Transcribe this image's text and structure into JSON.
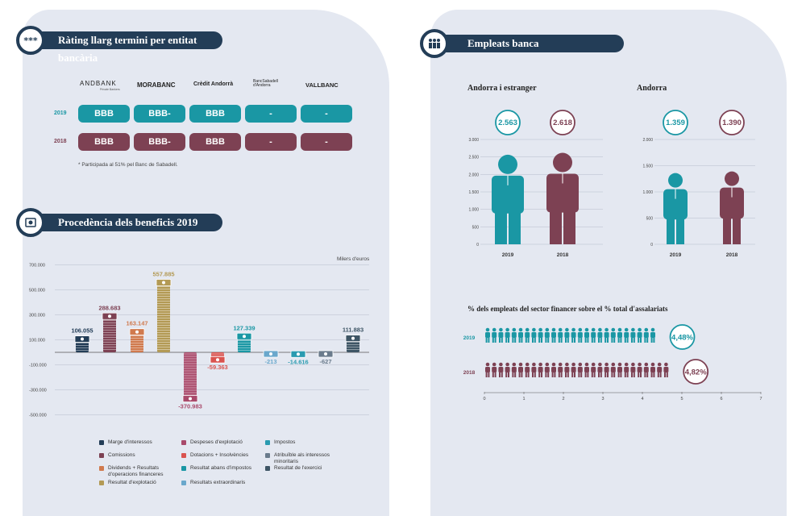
{
  "colors": {
    "navy": "#233d57",
    "teal": "#1a97a4",
    "maroon": "#7d4153",
    "panel": "#e4e8f1"
  },
  "rating": {
    "title": "Ràting llarg termini per entitat bancària",
    "icon": "stars-icon",
    "icon_glyph": "***",
    "logos": [
      "ANDBANK",
      "MORABANC",
      "Crèdit Andorrà",
      "BancSabadell d'Andorra",
      "VALLBANC"
    ],
    "logo_sub": "Private Bankers",
    "rows": [
      {
        "year": "2019",
        "values": [
          "BBB",
          "BBB-",
          "BBB",
          "-",
          "-"
        ]
      },
      {
        "year": "2018",
        "values": [
          "BBB",
          "BBB-",
          "BBB",
          "-",
          "-"
        ]
      }
    ],
    "note": "* Participada al 51% pel Banc de Sabadell."
  },
  "employees": {
    "title": "Empleats banca",
    "icon": "people-icon",
    "charts": [
      {
        "subtitle": "Andorra i estranger",
        "ticks": [
          "0",
          "500",
          "1.000",
          "1.500",
          "2.000",
          "2.500",
          "3.000"
        ],
        "bars": [
          {
            "year": "2019",
            "label": "2.563",
            "value": 2563
          },
          {
            "year": "2018",
            "label": "2.618",
            "value": 2618
          }
        ],
        "ymax": 3000
      },
      {
        "subtitle": "Andorra",
        "ticks": [
          "0",
          "500",
          "1.000",
          "1.500",
          "2.000"
        ],
        "bars": [
          {
            "year": "2019",
            "label": "1.359",
            "value": 1359
          },
          {
            "year": "2018",
            "label": "1.390",
            "value": 1390
          }
        ],
        "ymax": 2000
      }
    ],
    "pct_title": "% dels empleats del sector financer sobre el % total d'assalariats",
    "pct_rows": [
      {
        "year": "2019",
        "value": 4.48,
        "label": "4,48%"
      },
      {
        "year": "2018",
        "value": 4.82,
        "label": "4,82%"
      }
    ],
    "pct_ticks": [
      "0",
      "1",
      "2",
      "3",
      "4",
      "5",
      "6",
      "7"
    ]
  },
  "benefits": {
    "title": "Procedència dels beneficis 2019",
    "icon": "money-icon",
    "unit": "Milers d'euros",
    "ticks": [
      "700.000",
      "500.000",
      "300.000",
      "100.000",
      "-100.000",
      "-300.000",
      "-500.000"
    ],
    "legend": [
      {
        "label": "Marge d'interessos",
        "color": "#233d57"
      },
      {
        "label": "Comissions",
        "color": "#7d4153"
      },
      {
        "label": "Dividends + Resultats d'operacions financeres",
        "color": "#d07a4e"
      },
      {
        "label": "Resultat d'explotació",
        "color": "#b39a55"
      },
      {
        "label": "Despeses d'explotació",
        "color": "#a94a6b"
      },
      {
        "label": "Dotacions + Insolvències",
        "color": "#d9534f"
      },
      {
        "label": "Resultat abans d'impostos",
        "color": "#1a97a4"
      },
      {
        "label": "Resultats extraordinaris",
        "color": "#6aa8cc"
      },
      {
        "label": "Impostos",
        "color": "#2a9bb0"
      },
      {
        "label": "Atribuïble als interessos minoritaris",
        "color": "#6a7b8c"
      },
      {
        "label": "Resultat de l'exercici",
        "color": "#3e5565"
      }
    ]
  },
  "chart_data": {
    "type": "bar",
    "title": "Procedència dels beneficis 2019",
    "ylabel": "Milers d'euros",
    "ylim": [
      -500000,
      700000
    ],
    "categories": [
      "Marge d'interessos",
      "Comissions",
      "Dividends + Resultats d'operacions financeres",
      "Resultat d'explotació",
      "Despeses d'explotació",
      "Dotacions + Insolvències",
      "Resultat abans d'impostos",
      "Resultats extraordinaris",
      "Impostos",
      "Atribuïble als interessos minoritaris",
      "Resultat de l'exercici"
    ],
    "values": [
      106055,
      288683,
      163147,
      557885,
      -370983,
      -59363,
      127339,
      -213,
      -14616,
      -627,
      111883
    ],
    "labels": [
      "106.055",
      "288.683",
      "163.147",
      "557.885",
      "-370.983",
      "-59.363",
      "127.339",
      "-213",
      "-14.616",
      "-627",
      "111.883"
    ]
  }
}
